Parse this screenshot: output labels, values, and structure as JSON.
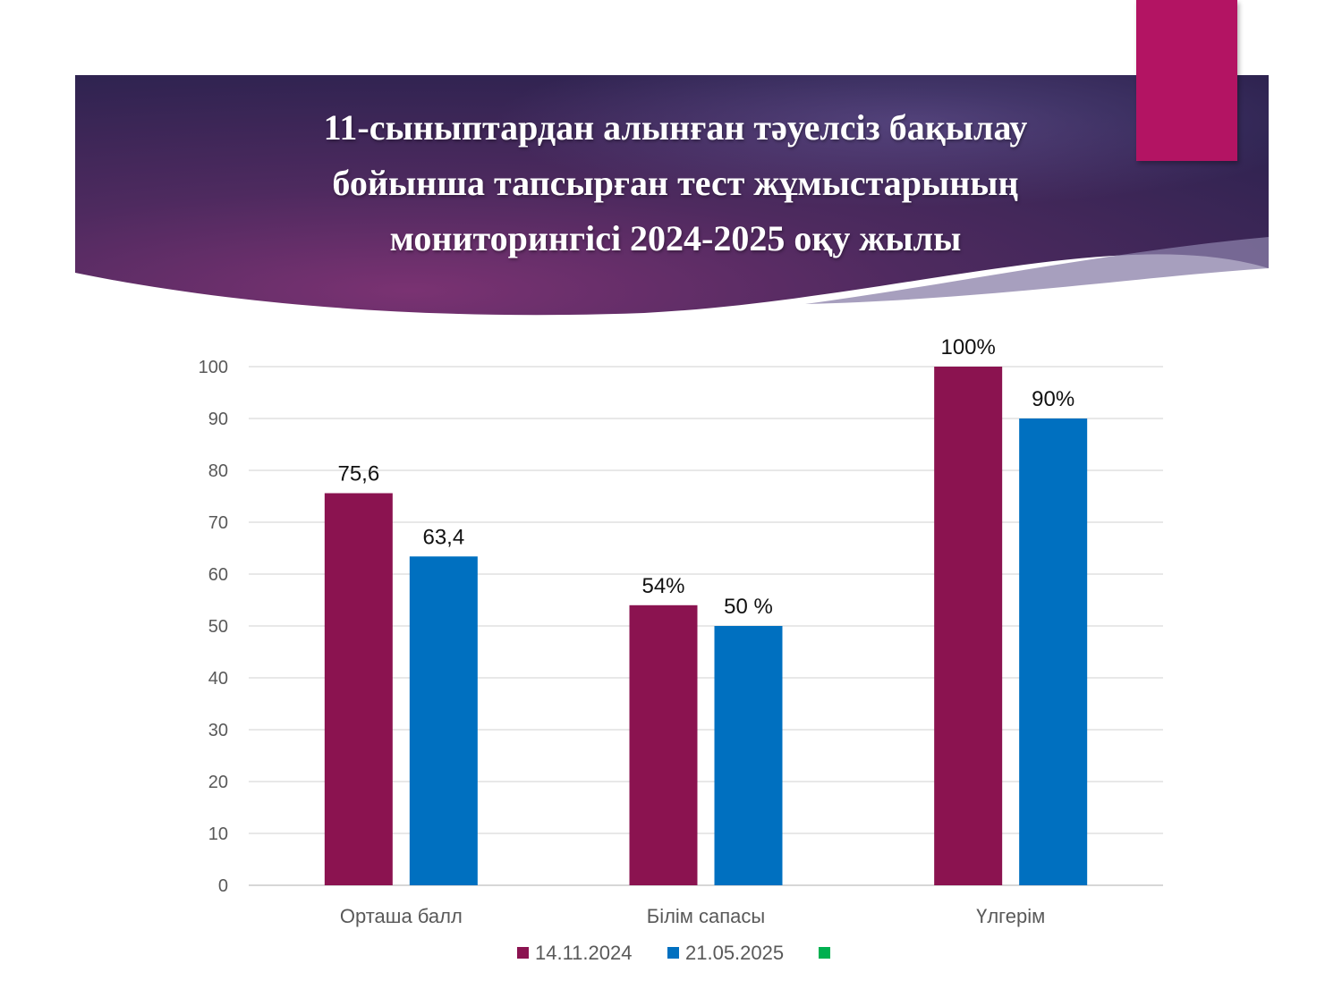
{
  "slide": {
    "title_lines": [
      "11-сыныптардан алынған тәуелсіз бақылау",
      "бойынша тапсырған тест жұмыстарының",
      "мониторингісі 2024-2025 оқу жылы"
    ],
    "banner_colors": {
      "dark": "#2f2352",
      "mid": "#5b2a63",
      "accent": "#b31463"
    }
  },
  "chart_data": {
    "type": "bar",
    "categories": [
      "Орташа балл",
      "Білім сапасы",
      "Үлгерім"
    ],
    "series": [
      {
        "name": "14.11.2024",
        "color": "#8b1350",
        "values": [
          75.6,
          54,
          100
        ],
        "labels": [
          "75,6",
          "54%",
          "100%"
        ]
      },
      {
        "name": "21.05.2025",
        "color": "#0070c0",
        "values": [
          63.4,
          50,
          90
        ],
        "labels": [
          "63,4",
          "50 %",
          "90%"
        ]
      }
    ],
    "legend_extra": [
      {
        "name": "",
        "color": "#00b050"
      }
    ],
    "ylim": [
      0,
      100
    ],
    "yticks": [
      0,
      10,
      20,
      30,
      40,
      50,
      60,
      70,
      80,
      90,
      100
    ],
    "grid": true,
    "legend_position": "bottom"
  }
}
